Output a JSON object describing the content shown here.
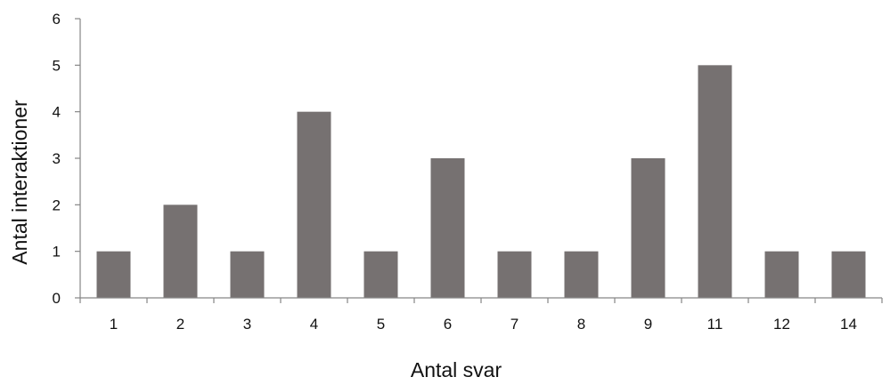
{
  "chart_data": {
    "type": "bar",
    "title": "",
    "xlabel": "Antal svar",
    "ylabel": "Antal interaktioner",
    "categories": [
      "1",
      "2",
      "3",
      "4",
      "5",
      "6",
      "7",
      "8",
      "9",
      "11",
      "12",
      "14"
    ],
    "values": [
      1,
      2,
      1,
      4,
      1,
      3,
      1,
      1,
      3,
      5,
      1,
      1
    ],
    "ylim": [
      0,
      6
    ],
    "yticks": [
      "0",
      "1",
      "2",
      "3",
      "4",
      "5",
      "6"
    ],
    "grid": false,
    "legend": "none",
    "bar_color": "#767171",
    "axis_color": "#868686"
  }
}
